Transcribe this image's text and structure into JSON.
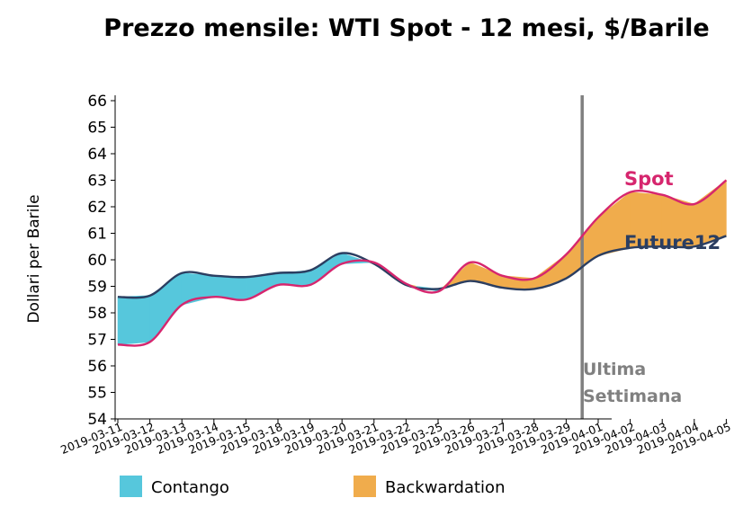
{
  "chart_data": {
    "type": "area",
    "title": "Prezzo mensile: WTI Spot - 12 mesi, $/Barile",
    "ylabel": "Dollari per Barile",
    "xlabel": "",
    "ylim": [
      54,
      66
    ],
    "yticks": [
      54,
      55,
      56,
      57,
      58,
      59,
      60,
      61,
      62,
      63,
      64,
      65,
      66
    ],
    "categories": [
      "2019-03-11",
      "2019-03-12",
      "2019-03-13",
      "2019-03-14",
      "2019-03-15",
      "2019-03-18",
      "2019-03-19",
      "2019-03-20",
      "2019-03-21",
      "2019-03-22",
      "2019-03-25",
      "2019-03-26",
      "2019-03-27",
      "2019-03-28",
      "2019-03-29",
      "2019-04-01",
      "2019-04-02",
      "2019-04-03",
      "2019-04-04",
      "2019-04-05"
    ],
    "series": [
      {
        "name": "Spot",
        "color": "#d6266e",
        "values": [
          56.8,
          56.9,
          58.3,
          58.6,
          58.5,
          59.05,
          59.05,
          59.85,
          59.9,
          59.1,
          58.8,
          59.9,
          59.4,
          59.3,
          60.2,
          61.6,
          62.55,
          62.45,
          62.1,
          63.0
        ]
      },
      {
        "name": "Future12",
        "color": "#2b3e61",
        "values": [
          58.6,
          58.65,
          59.5,
          59.4,
          59.35,
          59.5,
          59.6,
          60.25,
          59.85,
          59.05,
          58.9,
          59.2,
          58.95,
          58.9,
          59.3,
          60.15,
          60.45,
          60.5,
          60.5,
          60.9
        ]
      }
    ],
    "fills": {
      "contango": {
        "label": "Contango",
        "color": "#56c7dc"
      },
      "backwardation": {
        "label": "Backwardation",
        "color": "#f0ac4c"
      }
    },
    "vline": {
      "category_index": 14.5,
      "color": "#808080",
      "label_line1": "Ultima",
      "label_line2": "Settimana"
    },
    "legend_position": "bottom"
  }
}
